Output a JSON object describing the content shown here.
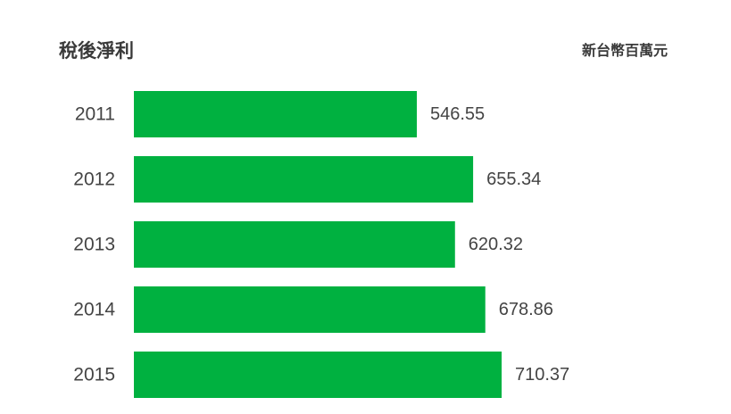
{
  "chart_data": {
    "type": "bar",
    "orientation": "horizontal",
    "title": "稅後淨利",
    "unit": "新台幣百萬元",
    "categories": [
      "2011",
      "2012",
      "2013",
      "2014",
      "2015"
    ],
    "values": [
      546.55,
      655.34,
      620.32,
      678.86,
      710.37
    ],
    "value_labels": [
      "546.55",
      "655.34",
      "620.32",
      "678.86",
      "710.37"
    ],
    "xlim": [
      0,
      710.37
    ],
    "grid": false,
    "legend": "none",
    "bar_color": "#00b140"
  }
}
